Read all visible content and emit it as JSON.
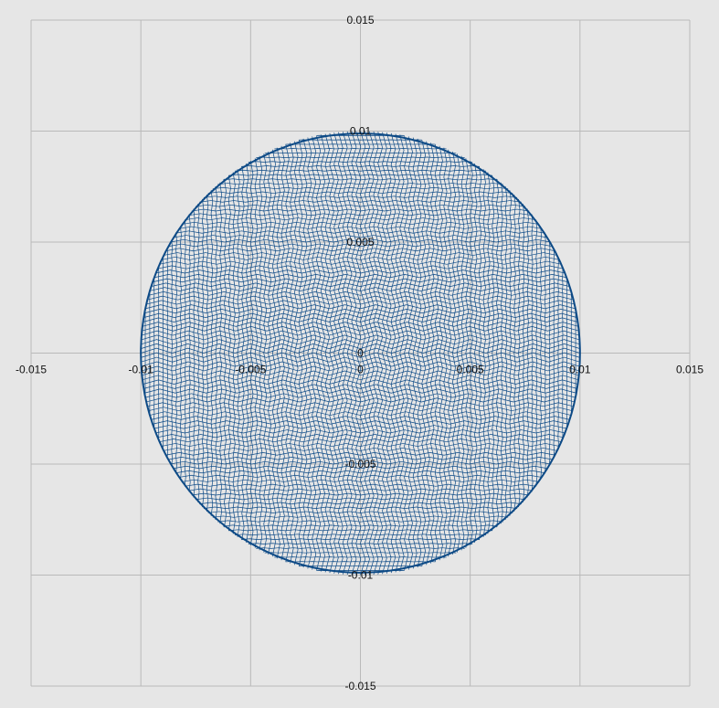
{
  "chart_data": {
    "type": "line",
    "title": "",
    "xlabel": "",
    "ylabel": "",
    "xlim": [
      -0.015,
      0.015
    ],
    "ylim": [
      -0.015,
      0.015
    ],
    "grid": true,
    "x_ticks": [
      -0.015,
      -0.01,
      -0.005,
      0,
      0.005,
      0.01,
      0.015
    ],
    "y_ticks": [
      -0.015,
      -0.01,
      -0.005,
      0,
      0.005,
      0.01,
      0.015
    ],
    "x_tick_labels": [
      "-0.015",
      "-0.01",
      "-0.005",
      "0",
      "0.005",
      "0.01",
      "0.015"
    ],
    "y_tick_labels": [
      "-0.015",
      "-0.01",
      "-0.005",
      "0",
      "0.005",
      "0.01",
      "0.015"
    ],
    "series": [
      {
        "pattern": "two families of straight chords inside a circle: vertical lines from (x, -sqrt(R^2-x^2)) to (x, sqrt(R^2-x^2)) and horizontal lines from (-sqrt(R^2-y^2), y) to (sqrt(R^2-y^2), y), with small sawtooth zig-zags that form a four-point star envelope",
        "radius": 0.01,
        "x_range": [
          -0.01,
          0.01
        ],
        "y_range": [
          -0.01,
          0.01
        ],
        "step": 0.0002
      }
    ],
    "colors": {
      "series": "#0d4a86",
      "grid": "#b9b9b9",
      "background": "#e6e6e6"
    }
  }
}
